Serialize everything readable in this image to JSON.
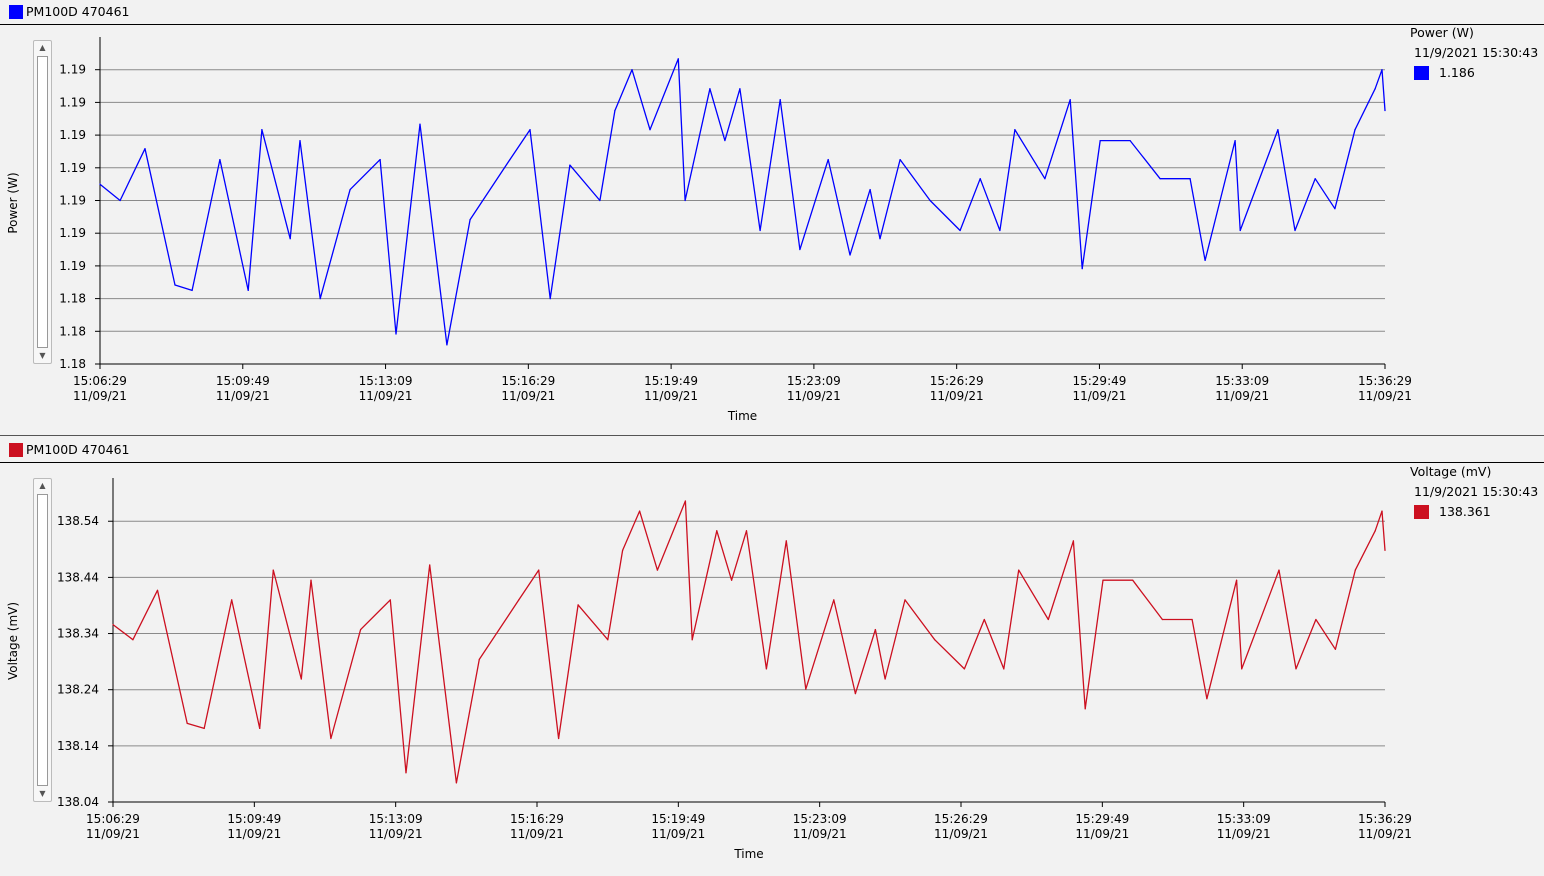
{
  "colors": {
    "power": "#0000ff",
    "voltage": "#cc1020"
  },
  "panels": [
    {
      "title": "PM100D 470461",
      "legend": {
        "name": "Power (W)",
        "timestamp": "11/9/2021 15:30:43",
        "value": "1.186"
      }
    },
    {
      "title": "PM100D 470461",
      "legend": {
        "name": "Voltage (mV)",
        "timestamp": "11/9/2021 15:30:43",
        "value": "138.361"
      }
    }
  ],
  "chart_data": [
    {
      "type": "line",
      "title": "",
      "xlabel": "Time",
      "ylabel": "Power (W)",
      "x_unit": "minutes since 15:06:29",
      "xlim": [
        0,
        30
      ],
      "ylim": [
        1.1815,
        1.1935
      ],
      "grid": true,
      "x_ticks": [
        {
          "time": "15:06:29",
          "date": "11/09/21"
        },
        {
          "time": "15:09:49",
          "date": "11/09/21"
        },
        {
          "time": "15:13:09",
          "date": "11/09/21"
        },
        {
          "time": "15:16:29",
          "date": "11/09/21"
        },
        {
          "time": "15:19:49",
          "date": "11/09/21"
        },
        {
          "time": "15:23:09",
          "date": "11/09/21"
        },
        {
          "time": "15:26:29",
          "date": "11/09/21"
        },
        {
          "time": "15:29:49",
          "date": "11/09/21"
        },
        {
          "time": "15:33:09",
          "date": "11/09/21"
        },
        {
          "time": "15:36:29",
          "date": "11/09/21"
        }
      ],
      "y_ticks": [
        {
          "value": 1.1815,
          "label": "1.18"
        },
        {
          "value": 1.1827,
          "label": "1.18"
        },
        {
          "value": 1.1839,
          "label": "1.18"
        },
        {
          "value": 1.1851,
          "label": "1.19"
        },
        {
          "value": 1.1863,
          "label": "1.19"
        },
        {
          "value": 1.1875,
          "label": "1.19"
        },
        {
          "value": 1.1887,
          "label": "1.19"
        },
        {
          "value": 1.1899,
          "label": "1.19"
        },
        {
          "value": 1.1911,
          "label": "1.19"
        },
        {
          "value": 1.1923,
          "label": "1.19"
        }
      ],
      "series": [
        {
          "name": "Power (W)",
          "x": [
            0,
            0.47,
            1.05,
            1.75,
            2.15,
            2.8,
            3.46,
            3.78,
            4.44,
            4.67,
            5.14,
            5.84,
            6.54,
            6.91,
            7.47,
            8.1,
            8.64,
            9.57,
            10.04,
            10.51,
            10.97,
            11.67,
            12.02,
            12.42,
            12.84,
            13.5,
            13.66,
            14.24,
            14.59,
            14.94,
            15.41,
            15.88,
            16.34,
            17.0,
            17.51,
            17.98,
            18.21,
            18.68,
            19.38,
            20.08,
            20.55,
            21.01,
            21.36,
            22.06,
            22.65,
            22.93,
            23.35,
            24.05,
            24.75,
            25.45,
            25.8,
            26.5,
            26.62,
            27.5,
            27.9,
            28.37,
            28.83,
            29.3,
            29.77,
            29.93,
            30.0
          ],
          "y": [
            1.1881,
            1.1875,
            1.1894,
            1.1844,
            1.1842,
            1.189,
            1.1842,
            1.1901,
            1.1861,
            1.1897,
            1.1839,
            1.1879,
            1.189,
            1.1826,
            1.1903,
            1.1822,
            1.1868,
            1.189,
            1.1901,
            1.1839,
            1.1888,
            1.1875,
            1.1908,
            1.1923,
            1.1901,
            1.1927,
            1.1875,
            1.1916,
            1.1897,
            1.1916,
            1.1864,
            1.1912,
            1.1857,
            1.189,
            1.1855,
            1.1879,
            1.1861,
            1.189,
            1.1875,
            1.1864,
            1.1883,
            1.1864,
            1.1901,
            1.1883,
            1.1912,
            1.185,
            1.1897,
            1.1897,
            1.1883,
            1.1883,
            1.1853,
            1.1897,
            1.1864,
            1.1901,
            1.1864,
            1.1883,
            1.1872,
            1.1901,
            1.1916,
            1.1923,
            1.1908
          ]
        }
      ]
    },
    {
      "type": "line",
      "title": "",
      "xlabel": "Time",
      "ylabel": "Voltage (mV)",
      "x_unit": "minutes since 15:06:29",
      "xlim": [
        0,
        30
      ],
      "ylim": [
        138.04,
        138.617
      ],
      "grid": true,
      "x_ticks": [
        {
          "time": "15:06:29",
          "date": "11/09/21"
        },
        {
          "time": "15:09:49",
          "date": "11/09/21"
        },
        {
          "time": "15:13:09",
          "date": "11/09/21"
        },
        {
          "time": "15:16:29",
          "date": "11/09/21"
        },
        {
          "time": "15:19:49",
          "date": "11/09/21"
        },
        {
          "time": "15:23:09",
          "date": "11/09/21"
        },
        {
          "time": "15:26:29",
          "date": "11/09/21"
        },
        {
          "time": "15:29:49",
          "date": "11/09/21"
        },
        {
          "time": "15:33:09",
          "date": "11/09/21"
        },
        {
          "time": "15:36:29",
          "date": "11/09/21"
        }
      ],
      "y_ticks": [
        {
          "value": 138.04,
          "label": "138.04"
        },
        {
          "value": 138.14,
          "label": "138.14"
        },
        {
          "value": 138.24,
          "label": "138.24"
        },
        {
          "value": 138.34,
          "label": "138.34"
        },
        {
          "value": 138.44,
          "label": "138.44"
        },
        {
          "value": 138.54,
          "label": "138.54"
        }
      ],
      "series": [
        {
          "name": "Voltage (mV)",
          "x": [
            0,
            0.47,
            1.05,
            1.75,
            2.15,
            2.8,
            3.46,
            3.78,
            4.44,
            4.67,
            5.14,
            5.84,
            6.54,
            6.91,
            7.47,
            8.1,
            8.64,
            9.57,
            10.04,
            10.51,
            10.97,
            11.67,
            12.02,
            12.42,
            12.84,
            13.5,
            13.66,
            14.24,
            14.59,
            14.94,
            15.41,
            15.88,
            16.34,
            17.0,
            17.51,
            17.98,
            18.21,
            18.68,
            19.38,
            20.08,
            20.55,
            21.01,
            21.36,
            22.06,
            22.65,
            22.93,
            23.35,
            24.05,
            24.75,
            25.45,
            25.8,
            26.5,
            26.62,
            27.5,
            27.9,
            28.37,
            28.83,
            29.3,
            29.77,
            29.93,
            30.0
          ],
          "y": [
            138.356,
            138.329,
            138.417,
            138.18,
            138.171,
            138.4,
            138.171,
            138.453,
            138.259,
            138.435,
            138.153,
            138.347,
            138.4,
            138.092,
            138.462,
            138.074,
            138.294,
            138.4,
            138.453,
            138.153,
            138.391,
            138.329,
            138.488,
            138.558,
            138.453,
            138.576,
            138.329,
            138.523,
            138.435,
            138.523,
            138.277,
            138.505,
            138.241,
            138.4,
            138.233,
            138.347,
            138.259,
            138.4,
            138.329,
            138.277,
            138.365,
            138.277,
            138.453,
            138.365,
            138.505,
            138.206,
            138.435,
            138.435,
            138.365,
            138.365,
            138.224,
            138.435,
            138.277,
            138.453,
            138.277,
            138.365,
            138.312,
            138.453,
            138.523,
            138.558,
            138.488
          ]
        }
      ]
    }
  ]
}
